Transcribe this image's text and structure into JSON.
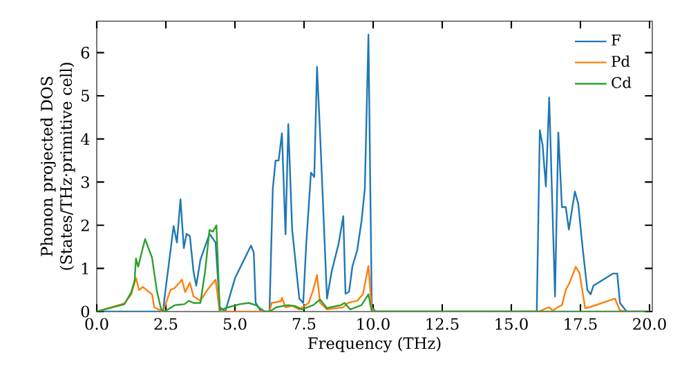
{
  "chart_data": {
    "type": "line",
    "xlabel": "Frequency (THz)",
    "ylabel": "Phonon projected DOS (States/THz·primitive cell)",
    "xlim": [
      0,
      20.1
    ],
    "ylim": [
      0,
      6.73
    ],
    "xticks": [
      {
        "value": 0,
        "label": "0.0"
      },
      {
        "value": 2.5,
        "label": "2.5"
      },
      {
        "value": 5,
        "label": "5.0"
      },
      {
        "value": 7.5,
        "label": "7.5"
      },
      {
        "value": 10,
        "label": "10.0"
      },
      {
        "value": 12.5,
        "label": "12.5"
      },
      {
        "value": 15,
        "label": "15.0"
      },
      {
        "value": 17.5,
        "label": "17.5"
      },
      {
        "value": 20,
        "label": "20.0"
      }
    ],
    "yticks": [
      0,
      1,
      2,
      3,
      4,
      5,
      6
    ],
    "legend": "top right",
    "grid": false,
    "series": [
      {
        "name": "F",
        "color": "#1f77b4",
        "x": [
          0,
          2.4,
          2.45,
          2.78,
          2.9,
          3.03,
          3.15,
          3.25,
          3.37,
          3.5,
          3.6,
          3.75,
          4.08,
          4.3,
          4.45,
          4.65,
          5.0,
          5.58,
          5.68,
          5.75,
          5.95,
          6.25,
          6.37,
          6.47,
          6.58,
          6.7,
          6.83,
          6.93,
          7.07,
          7.33,
          7.47,
          7.58,
          7.75,
          7.87,
          7.97,
          8.08,
          8.33,
          8.5,
          8.75,
          8.92,
          9.0,
          9.13,
          9.25,
          9.42,
          9.58,
          9.7,
          9.83,
          9.95,
          10.1,
          15.92,
          16.03,
          16.13,
          16.25,
          16.37,
          16.58,
          16.7,
          16.83,
          16.97,
          17.08,
          17.3,
          17.42,
          17.58,
          17.75,
          17.87,
          17.97,
          18.67,
          18.83,
          18.93,
          19.17,
          20.0
        ],
        "values": [
          0,
          0,
          0.3,
          1.98,
          1.6,
          2.6,
          1.47,
          1.8,
          1.75,
          0.93,
          0.6,
          1.2,
          1.8,
          1.6,
          0.1,
          0,
          0.77,
          1.53,
          1.37,
          0.2,
          0,
          0,
          2.85,
          3.5,
          3.5,
          4.13,
          1.79,
          4.34,
          1.9,
          0.3,
          0.2,
          1.57,
          3.22,
          3.12,
          5.67,
          4.13,
          0.3,
          0.93,
          1.57,
          2.21,
          0.41,
          0.46,
          1.05,
          1.41,
          2.1,
          2.85,
          6.42,
          0.1,
          0,
          0,
          4.2,
          3.86,
          2.9,
          4.96,
          0.35,
          4.15,
          2.42,
          2.42,
          1.9,
          2.78,
          2.5,
          1.47,
          0.5,
          0.4,
          0.6,
          0.88,
          0.88,
          0.2,
          0,
          0
        ]
      },
      {
        "name": "Pd",
        "color": "#ff7f0e",
        "x": [
          0,
          1.0,
          1.25,
          1.42,
          1.53,
          1.67,
          2.0,
          2.08,
          2.4,
          2.67,
          2.83,
          3.08,
          3.2,
          3.37,
          3.5,
          3.75,
          4.0,
          4.3,
          4.45,
          6.25,
          6.33,
          6.67,
          6.7,
          6.83,
          7.08,
          7.33,
          7.67,
          7.83,
          7.97,
          8.08,
          8.33,
          8.92,
          9.08,
          9.42,
          9.63,
          9.83,
          9.95,
          10.1,
          16.0,
          16.17,
          16.37,
          16.5,
          16.67,
          16.83,
          16.97,
          17.13,
          17.33,
          17.47,
          17.67,
          17.83,
          18.75,
          18.92,
          19.1,
          20.0
        ],
        "values": [
          0,
          0.19,
          0.4,
          0.78,
          0.5,
          0.57,
          0.4,
          0.1,
          0,
          0.5,
          0.55,
          0.74,
          0.45,
          0.67,
          0.35,
          0.25,
          0.5,
          0.74,
          0,
          0,
          0.2,
          0.24,
          0.32,
          0.1,
          0.13,
          0.05,
          0.2,
          0.5,
          0.85,
          0.2,
          0.05,
          0.1,
          0.2,
          0.25,
          0.4,
          1.06,
          0.05,
          0,
          0,
          0.05,
          0.1,
          0.02,
          0.1,
          0.15,
          0.5,
          0.7,
          1.04,
          0.88,
          0.08,
          0.1,
          0.3,
          0.03,
          0,
          0
        ]
      },
      {
        "name": "Cd",
        "color": "#2ca02c",
        "x": [
          0,
          1.0,
          1.25,
          1.37,
          1.42,
          1.5,
          1.58,
          1.75,
          2.0,
          2.17,
          2.33,
          2.45,
          2.83,
          3.17,
          3.33,
          3.5,
          3.75,
          3.92,
          4.08,
          4.2,
          4.33,
          4.45,
          4.75,
          5.17,
          5.5,
          5.75,
          6.08,
          6.25,
          6.5,
          6.92,
          7.17,
          7.42,
          7.83,
          8.08,
          8.33,
          8.83,
          8.97,
          9.17,
          9.58,
          9.83,
          9.95,
          20.0
        ],
        "values": [
          0,
          0.17,
          0.45,
          0.72,
          1.23,
          1.04,
          1.25,
          1.68,
          1.25,
          0.5,
          0.05,
          0,
          0.15,
          0.17,
          0.25,
          0.2,
          0.2,
          0.93,
          1.89,
          1.85,
          2.0,
          0.03,
          0.1,
          0.17,
          0.2,
          0.15,
          0,
          0,
          0.1,
          0.15,
          0.13,
          0.05,
          0.15,
          0.28,
          0.08,
          0.15,
          0.2,
          0.05,
          0.15,
          0.4,
          0,
          0
        ]
      }
    ]
  }
}
